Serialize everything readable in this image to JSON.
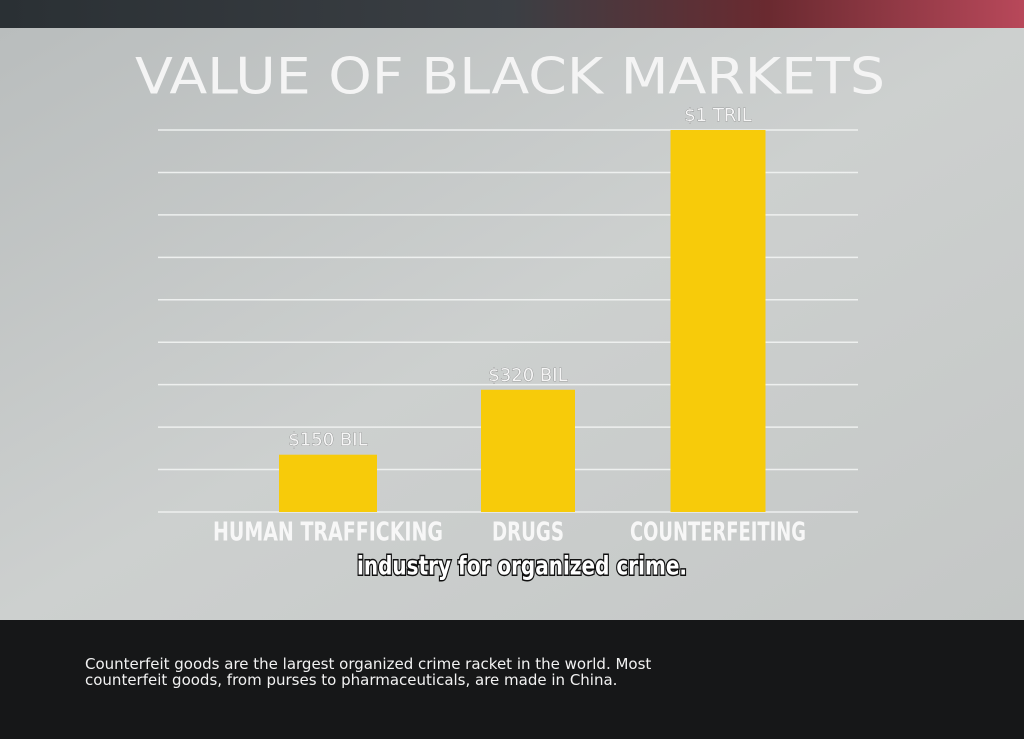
{
  "chart_data": {
    "type": "bar",
    "title": "VALUE OF BLACK MARKETS",
    "categories": [
      "HUMAN TRAFFICKING",
      "DRUGS",
      "COUNTERFEITING"
    ],
    "values": [
      150,
      320,
      1000
    ],
    "value_labels": [
      "$150 BIL",
      "$320 BIL",
      "$1 TRIL"
    ],
    "color": "#f7cb0a",
    "ylim": [
      0,
      1000
    ],
    "grid": true
  },
  "caption": "industry for organized crime.",
  "description": "Counterfeit goods are the largest organized crime racket in the world. Most counterfeit goods, from purses to pharmaceuticals, are made in China."
}
